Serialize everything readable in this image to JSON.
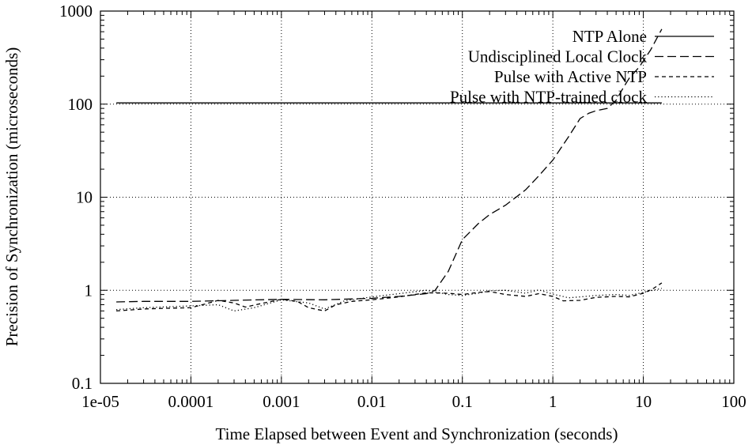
{
  "chart_data": {
    "type": "line",
    "xscale": "log",
    "yscale": "log",
    "xlabel": "Time Elapsed between Event and Synchronization (seconds)",
    "ylabel": "Precision of Synchronization (microseconds)",
    "xlim": [
      1e-05,
      100
    ],
    "ylim": [
      0.1,
      1000
    ],
    "x_ticks": [
      "1e-05",
      "0.0001",
      "0.001",
      "0.01",
      "0.1",
      "1",
      "10",
      "100"
    ],
    "y_ticks": [
      "0.1",
      "1",
      "10",
      "100",
      "1000"
    ],
    "grid": true,
    "legend_position": "top-right",
    "series": [
      {
        "name": "NTP Alone",
        "style": "solid",
        "x": [
          1.5e-05,
          16
        ],
        "y": [
          103,
          103
        ]
      },
      {
        "name": "Undisciplined Local Clock",
        "style": "long-dash",
        "x": [
          1.5e-05,
          3e-05,
          0.0001,
          0.0003,
          0.001,
          0.003,
          0.01,
          0.02,
          0.04,
          0.05,
          0.07,
          0.1,
          0.15,
          0.2,
          0.3,
          0.5,
          0.7,
          1,
          1.5,
          2,
          2.5,
          3,
          4,
          5,
          6,
          7,
          9,
          12,
          16
        ],
        "y": [
          0.75,
          0.76,
          0.76,
          0.78,
          0.8,
          0.79,
          0.82,
          0.86,
          0.92,
          1.0,
          1.6,
          3.5,
          5.2,
          6.5,
          8.2,
          12,
          17,
          25,
          45,
          70,
          80,
          85,
          90,
          110,
          150,
          190,
          250,
          380,
          640
        ]
      },
      {
        "name": "Pulse with Active NTP",
        "style": "short-dash",
        "x": [
          1.5e-05,
          3e-05,
          5e-05,
          0.0001,
          0.00015,
          0.0002,
          0.0003,
          0.0004,
          0.0006,
          0.001,
          0.0015,
          0.002,
          0.003,
          0.004,
          0.006,
          0.01,
          0.02,
          0.04,
          0.07,
          0.1,
          0.15,
          0.2,
          0.3,
          0.5,
          0.7,
          1,
          1.3,
          2,
          3,
          5,
          7,
          10,
          13,
          16
        ],
        "y": [
          0.6,
          0.63,
          0.64,
          0.65,
          0.72,
          0.78,
          0.73,
          0.66,
          0.72,
          0.8,
          0.76,
          0.65,
          0.6,
          0.7,
          0.76,
          0.79,
          0.85,
          0.94,
          0.93,
          0.9,
          0.95,
          0.97,
          0.9,
          0.86,
          0.92,
          0.86,
          0.77,
          0.78,
          0.84,
          0.86,
          0.85,
          0.93,
          1.05,
          1.2
        ]
      },
      {
        "name": "Pulse with NTP-trained clock",
        "style": "dotted",
        "x": [
          1.5e-05,
          3e-05,
          0.0001,
          0.0002,
          0.0003,
          0.0005,
          0.001,
          0.002,
          0.003,
          0.005,
          0.01,
          0.02,
          0.04,
          0.07,
          0.1,
          0.15,
          0.2,
          0.3,
          0.5,
          0.7,
          1,
          1.5,
          2,
          3,
          5,
          7,
          10,
          16
        ],
        "y": [
          0.62,
          0.65,
          0.68,
          0.7,
          0.6,
          0.65,
          0.79,
          0.73,
          0.63,
          0.77,
          0.85,
          0.92,
          1.0,
          0.9,
          0.88,
          0.93,
          0.99,
          1.0,
          0.93,
          1.01,
          0.91,
          0.83,
          0.85,
          0.88,
          0.9,
          0.88,
          0.95,
          1.05
        ]
      }
    ]
  }
}
